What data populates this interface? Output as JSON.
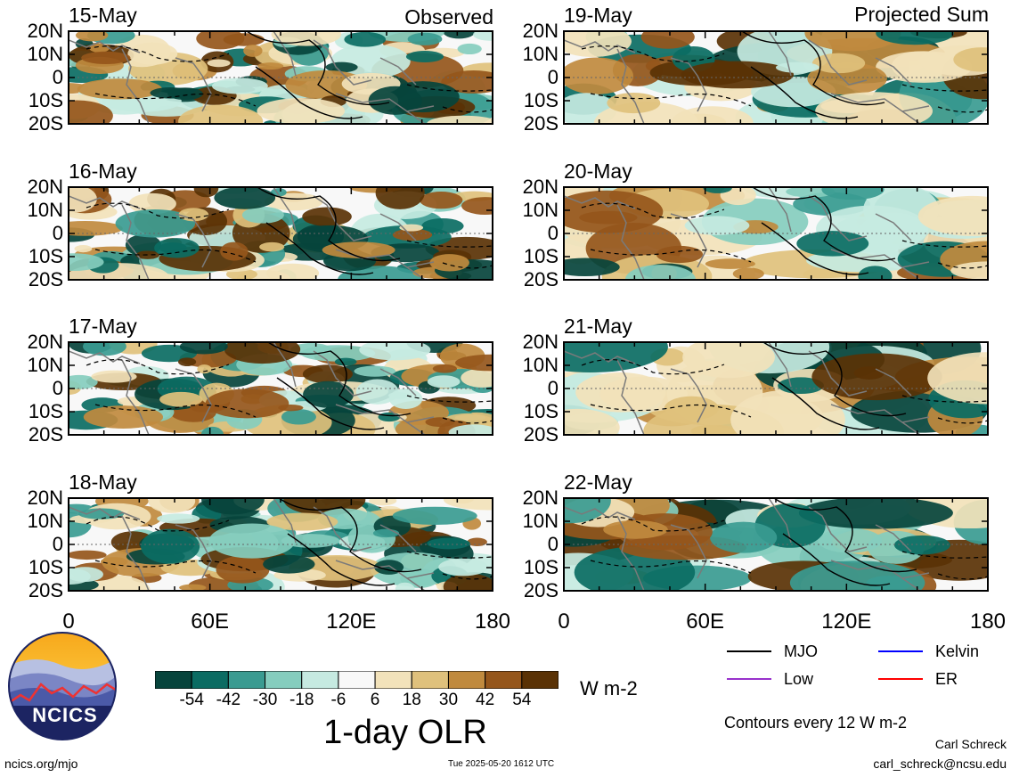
{
  "chart_data": {
    "type": "heatmap",
    "title": "1-day OLR",
    "units": "W m-2",
    "groups": [
      {
        "label": "Observed",
        "dates": [
          "15-May",
          "16-May",
          "17-May",
          "18-May"
        ]
      },
      {
        "label": "Projected Sum",
        "dates": [
          "19-May",
          "20-May",
          "21-May",
          "22-May"
        ]
      }
    ],
    "x_ticks": [
      "0",
      "60E",
      "120E",
      "180"
    ],
    "y_ticks": [
      "20N",
      "10N",
      "0",
      "10S",
      "20S"
    ],
    "xlim": [
      0,
      180
    ],
    "ylim": [
      -20,
      20
    ],
    "colorbar": {
      "labels": [
        "-54",
        "-42",
        "-30",
        "-18",
        "-6",
        "6",
        "18",
        "30",
        "42",
        "54"
      ],
      "colors": [
        "#07443c",
        "#0b6c63",
        "#3a9b91",
        "#85cdbe",
        "#c6eae1",
        "#f8f8f8",
        "#f2e2ba",
        "#dfc17c",
        "#c08a3e",
        "#95561b",
        "#5a3205"
      ]
    },
    "contour_note": "Contours every 12 W m-2",
    "legend": [
      {
        "name": "MJO",
        "color": "#000000"
      },
      {
        "name": "Kelvin",
        "color": "#0000ff"
      },
      {
        "name": "Low",
        "color": "#9932cc"
      },
      {
        "name": "ER",
        "color": "#ff0000"
      }
    ]
  },
  "footer": {
    "logo_text": "NCICS",
    "url": "ncics.org/mjo",
    "timestamp": "Tue 2025-05-20 1612 UTC",
    "author": "Carl Schreck",
    "email": "carl_schreck@ncsu.edu"
  }
}
